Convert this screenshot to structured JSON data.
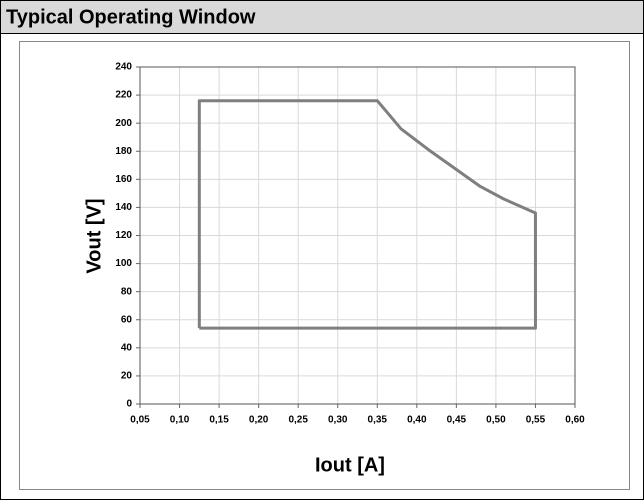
{
  "chart_data": {
    "type": "line",
    "title": "Typical Operating Window",
    "xlabel": "Iout [A]",
    "ylabel": "Vout [V]",
    "x": [
      0.125,
      0.125,
      0.35,
      0.38,
      0.415,
      0.45,
      0.48,
      0.51,
      0.55,
      0.55,
      0.125
    ],
    "values": [
      54,
      216,
      216,
      196,
      181,
      167,
      155,
      146,
      136,
      54,
      54
    ],
    "color": "#7f7f7f",
    "xlim": [
      0.05,
      0.6
    ],
    "xticks": [
      {
        "value": 0.05,
        "label": "0,05"
      },
      {
        "value": 0.1,
        "label": "0,10"
      },
      {
        "value": 0.15,
        "label": "0,15"
      },
      {
        "value": 0.2,
        "label": "0,20"
      },
      {
        "value": 0.25,
        "label": "0,25"
      },
      {
        "value": 0.3,
        "label": "0,30"
      },
      {
        "value": 0.35,
        "label": "0,35"
      },
      {
        "value": 0.4,
        "label": "0,40"
      },
      {
        "value": 0.45,
        "label": "0,45"
      },
      {
        "value": 0.5,
        "label": "0,50"
      },
      {
        "value": 0.55,
        "label": "0,55"
      },
      {
        "value": 0.6,
        "label": "0,60"
      }
    ],
    "ylim": [
      0,
      240
    ],
    "yticks": [
      0,
      20,
      40,
      60,
      80,
      100,
      120,
      140,
      160,
      180,
      200,
      220,
      240
    ],
    "grid": true
  }
}
